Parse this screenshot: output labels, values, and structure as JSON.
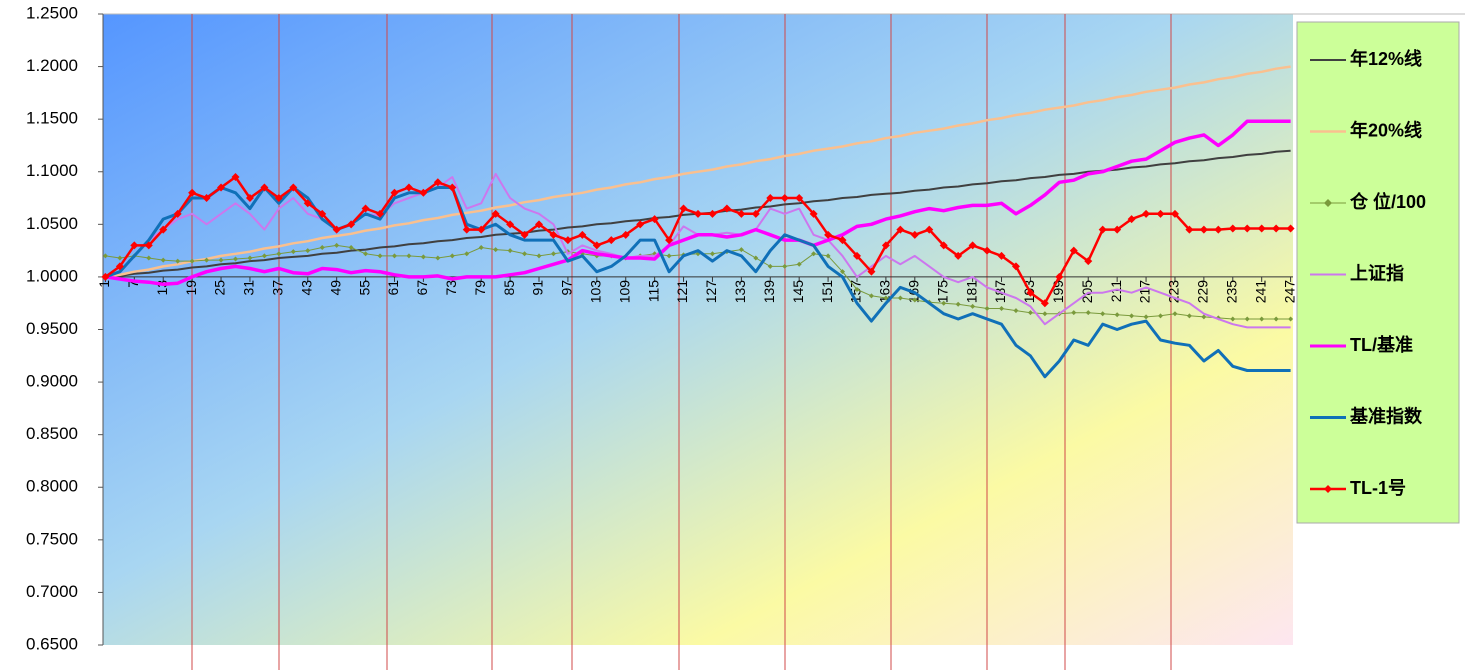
{
  "chart_data": {
    "type": "line",
    "legend": "right",
    "grid": false,
    "xlim": [
      0.5,
      247.5
    ],
    "xticks": [
      1,
      7,
      13,
      19,
      25,
      31,
      37,
      43,
      49,
      55,
      61,
      67,
      73,
      79,
      85,
      91,
      97,
      103,
      109,
      115,
      121,
      127,
      133,
      139,
      145,
      151,
      157,
      163,
      169,
      175,
      181,
      187,
      193,
      199,
      205,
      211,
      217,
      223,
      229,
      235,
      241,
      247
    ],
    "ylim": [
      0.65,
      1.25
    ],
    "yticks": [
      {
        "value": 0.65,
        "label": "0.6500"
      },
      {
        "value": 0.7,
        "label": "0.7000"
      },
      {
        "value": 0.75,
        "label": "0.7500"
      },
      {
        "value": 0.8,
        "label": "0.8000"
      },
      {
        "value": 0.85,
        "label": "0.8500"
      },
      {
        "value": 0.9,
        "label": "0.9000"
      },
      {
        "value": 0.95,
        "label": "0.9500"
      },
      {
        "value": 1.0,
        "label": "1.0000"
      },
      {
        "value": 1.05,
        "label": "1.0500"
      },
      {
        "value": 1.1,
        "label": "1.1000"
      },
      {
        "value": 1.15,
        "label": "1.1500"
      },
      {
        "value": 1.2,
        "label": "1.2000"
      },
      {
        "value": 1.25,
        "label": "1.2500"
      }
    ],
    "x": [
      1,
      4,
      7,
      10,
      13,
      16,
      19,
      22,
      25,
      28,
      31,
      34,
      37,
      40,
      43,
      46,
      49,
      52,
      55,
      58,
      61,
      64,
      67,
      70,
      73,
      76,
      79,
      82,
      85,
      88,
      91,
      94,
      97,
      100,
      103,
      106,
      109,
      112,
      115,
      118,
      121,
      124,
      127,
      130,
      133,
      136,
      139,
      142,
      145,
      148,
      151,
      154,
      157,
      160,
      163,
      166,
      169,
      172,
      175,
      178,
      181,
      184,
      187,
      190,
      193,
      196,
      199,
      202,
      205,
      208,
      211,
      214,
      217,
      220,
      223,
      226,
      229,
      232,
      235,
      238,
      241,
      244,
      247
    ],
    "series": [
      {
        "name": "年12%线",
        "color": "#404040",
        "marker": "none",
        "values": [
          1.0,
          1.001,
          1.003,
          1.004,
          1.006,
          1.007,
          1.009,
          1.01,
          1.012,
          1.013,
          1.015,
          1.016,
          1.018,
          1.019,
          1.02,
          1.022,
          1.023,
          1.025,
          1.026,
          1.028,
          1.029,
          1.031,
          1.032,
          1.034,
          1.035,
          1.037,
          1.038,
          1.04,
          1.041,
          1.042,
          1.044,
          1.045,
          1.047,
          1.048,
          1.05,
          1.051,
          1.053,
          1.054,
          1.056,
          1.057,
          1.059,
          1.06,
          1.061,
          1.063,
          1.064,
          1.066,
          1.067,
          1.069,
          1.07,
          1.072,
          1.073,
          1.075,
          1.076,
          1.078,
          1.079,
          1.08,
          1.082,
          1.083,
          1.085,
          1.086,
          1.088,
          1.089,
          1.091,
          1.092,
          1.094,
          1.095,
          1.097,
          1.098,
          1.1,
          1.101,
          1.102,
          1.104,
          1.105,
          1.107,
          1.108,
          1.11,
          1.111,
          1.113,
          1.114,
          1.116,
          1.117,
          1.119,
          1.12
        ]
      },
      {
        "name": "年20%线",
        "color": "#fac08f",
        "marker": "none",
        "values": [
          1.0,
          1.002,
          1.005,
          1.007,
          1.01,
          1.012,
          1.015,
          1.017,
          1.02,
          1.022,
          1.024,
          1.027,
          1.029,
          1.032,
          1.034,
          1.037,
          1.039,
          1.041,
          1.044,
          1.046,
          1.049,
          1.051,
          1.054,
          1.056,
          1.059,
          1.061,
          1.063,
          1.066,
          1.068,
          1.071,
          1.073,
          1.076,
          1.078,
          1.08,
          1.083,
          1.085,
          1.088,
          1.09,
          1.093,
          1.095,
          1.098,
          1.1,
          1.102,
          1.105,
          1.107,
          1.11,
          1.112,
          1.115,
          1.117,
          1.12,
          1.122,
          1.124,
          1.127,
          1.129,
          1.132,
          1.134,
          1.137,
          1.139,
          1.141,
          1.144,
          1.146,
          1.149,
          1.151,
          1.154,
          1.156,
          1.159,
          1.161,
          1.163,
          1.166,
          1.168,
          1.171,
          1.173,
          1.176,
          1.178,
          1.18,
          1.183,
          1.185,
          1.188,
          1.19,
          1.193,
          1.195,
          1.198,
          1.2
        ]
      },
      {
        "name": "仓 位/100",
        "color": "#7a9a3c",
        "marker": "diamond",
        "values": [
          1.02,
          1.018,
          1.02,
          1.018,
          1.016,
          1.015,
          1.015,
          1.016,
          1.016,
          1.017,
          1.018,
          1.02,
          1.022,
          1.024,
          1.025,
          1.028,
          1.03,
          1.028,
          1.022,
          1.02,
          1.02,
          1.02,
          1.019,
          1.018,
          1.02,
          1.022,
          1.028,
          1.026,
          1.025,
          1.022,
          1.02,
          1.022,
          1.024,
          1.022,
          1.02,
          1.02,
          1.018,
          1.02,
          1.022,
          1.02,
          1.021,
          1.022,
          1.022,
          1.024,
          1.026,
          1.018,
          1.01,
          1.01,
          1.012,
          1.022,
          1.02,
          1.005,
          0.988,
          0.982,
          0.98,
          0.98,
          0.978,
          0.976,
          0.975,
          0.974,
          0.972,
          0.97,
          0.97,
          0.968,
          0.966,
          0.965,
          0.965,
          0.966,
          0.966,
          0.965,
          0.964,
          0.963,
          0.962,
          0.963,
          0.965,
          0.963,
          0.962,
          0.961,
          0.96,
          0.96,
          0.96,
          0.96,
          0.96
        ]
      },
      {
        "name": "上证指",
        "color": "#cc77ee",
        "marker": "none",
        "values": [
          1.0,
          1.005,
          1.02,
          1.035,
          1.045,
          1.055,
          1.06,
          1.05,
          1.06,
          1.07,
          1.06,
          1.045,
          1.065,
          1.075,
          1.06,
          1.055,
          1.045,
          1.05,
          1.06,
          1.058,
          1.07,
          1.075,
          1.08,
          1.085,
          1.095,
          1.065,
          1.07,
          1.098,
          1.075,
          1.065,
          1.06,
          1.05,
          1.022,
          1.03,
          1.025,
          1.022,
          1.018,
          1.02,
          1.02,
          1.03,
          1.048,
          1.04,
          1.04,
          1.042,
          1.04,
          1.045,
          1.065,
          1.06,
          1.065,
          1.04,
          1.035,
          1.02,
          1.0,
          1.01,
          1.02,
          1.012,
          1.02,
          1.01,
          1.0,
          0.995,
          1.0,
          0.99,
          0.985,
          0.98,
          0.972,
          0.955,
          0.965,
          0.975,
          0.985,
          0.985,
          0.988,
          0.985,
          0.99,
          0.985,
          0.98,
          0.975,
          0.965,
          0.96,
          0.955,
          0.952,
          0.952,
          0.952,
          0.952
        ]
      },
      {
        "name": "TL/基准",
        "color": "#ff00ff",
        "marker": "none",
        "values": [
          1.0,
          0.998,
          0.996,
          0.995,
          0.993,
          0.994,
          1.0,
          1.005,
          1.008,
          1.01,
          1.008,
          1.005,
          1.008,
          1.004,
          1.003,
          1.008,
          1.007,
          1.004,
          1.006,
          1.005,
          1.002,
          1.0,
          1.0,
          1.001,
          0.998,
          1.0,
          1.0,
          1.0,
          1.002,
          1.004,
          1.008,
          1.012,
          1.016,
          1.025,
          1.022,
          1.02,
          1.018,
          1.018,
          1.017,
          1.03,
          1.035,
          1.04,
          1.04,
          1.038,
          1.04,
          1.045,
          1.04,
          1.035,
          1.035,
          1.03,
          1.035,
          1.04,
          1.048,
          1.05,
          1.055,
          1.058,
          1.062,
          1.065,
          1.063,
          1.066,
          1.068,
          1.068,
          1.07,
          1.06,
          1.068,
          1.078,
          1.09,
          1.092,
          1.098,
          1.1,
          1.105,
          1.11,
          1.112,
          1.12,
          1.128,
          1.132,
          1.135,
          1.125,
          1.135,
          1.148,
          1.148,
          1.148,
          1.148
        ]
      },
      {
        "name": "基准指数",
        "color": "#1070b8",
        "marker": "none",
        "values": [
          1.0,
          1.005,
          1.02,
          1.035,
          1.055,
          1.06,
          1.075,
          1.075,
          1.085,
          1.08,
          1.065,
          1.085,
          1.07,
          1.085,
          1.075,
          1.055,
          1.045,
          1.05,
          1.06,
          1.055,
          1.075,
          1.08,
          1.08,
          1.085,
          1.085,
          1.05,
          1.045,
          1.05,
          1.04,
          1.035,
          1.035,
          1.035,
          1.015,
          1.02,
          1.005,
          1.01,
          1.02,
          1.035,
          1.035,
          1.005,
          1.02,
          1.025,
          1.015,
          1.025,
          1.02,
          1.005,
          1.025,
          1.04,
          1.035,
          1.03,
          1.01,
          1.0,
          0.975,
          0.958,
          0.975,
          0.99,
          0.985,
          0.975,
          0.965,
          0.96,
          0.965,
          0.96,
          0.955,
          0.935,
          0.925,
          0.905,
          0.92,
          0.94,
          0.935,
          0.955,
          0.95,
          0.955,
          0.958,
          0.94,
          0.937,
          0.935,
          0.92,
          0.93,
          0.915,
          0.911,
          0.911,
          0.911,
          0.911
        ]
      },
      {
        "name": "TL-1号",
        "color": "#ff0000",
        "marker": "diamond",
        "values": [
          1.0,
          1.01,
          1.03,
          1.03,
          1.045,
          1.06,
          1.08,
          1.075,
          1.085,
          1.095,
          1.075,
          1.085,
          1.075,
          1.085,
          1.07,
          1.06,
          1.045,
          1.05,
          1.065,
          1.06,
          1.08,
          1.085,
          1.08,
          1.09,
          1.085,
          1.045,
          1.045,
          1.06,
          1.05,
          1.04,
          1.05,
          1.04,
          1.035,
          1.04,
          1.03,
          1.035,
          1.04,
          1.05,
          1.055,
          1.035,
          1.065,
          1.06,
          1.06,
          1.065,
          1.06,
          1.06,
          1.075,
          1.075,
          1.075,
          1.06,
          1.04,
          1.035,
          1.02,
          1.005,
          1.03,
          1.045,
          1.04,
          1.045,
          1.03,
          1.02,
          1.03,
          1.025,
          1.02,
          1.01,
          0.985,
          0.975,
          1.0,
          1.025,
          1.015,
          1.045,
          1.045,
          1.055,
          1.06,
          1.06,
          1.06,
          1.045,
          1.045,
          1.045,
          1.046,
          1.046,
          1.046,
          1.046,
          1.046
        ]
      }
    ]
  }
}
